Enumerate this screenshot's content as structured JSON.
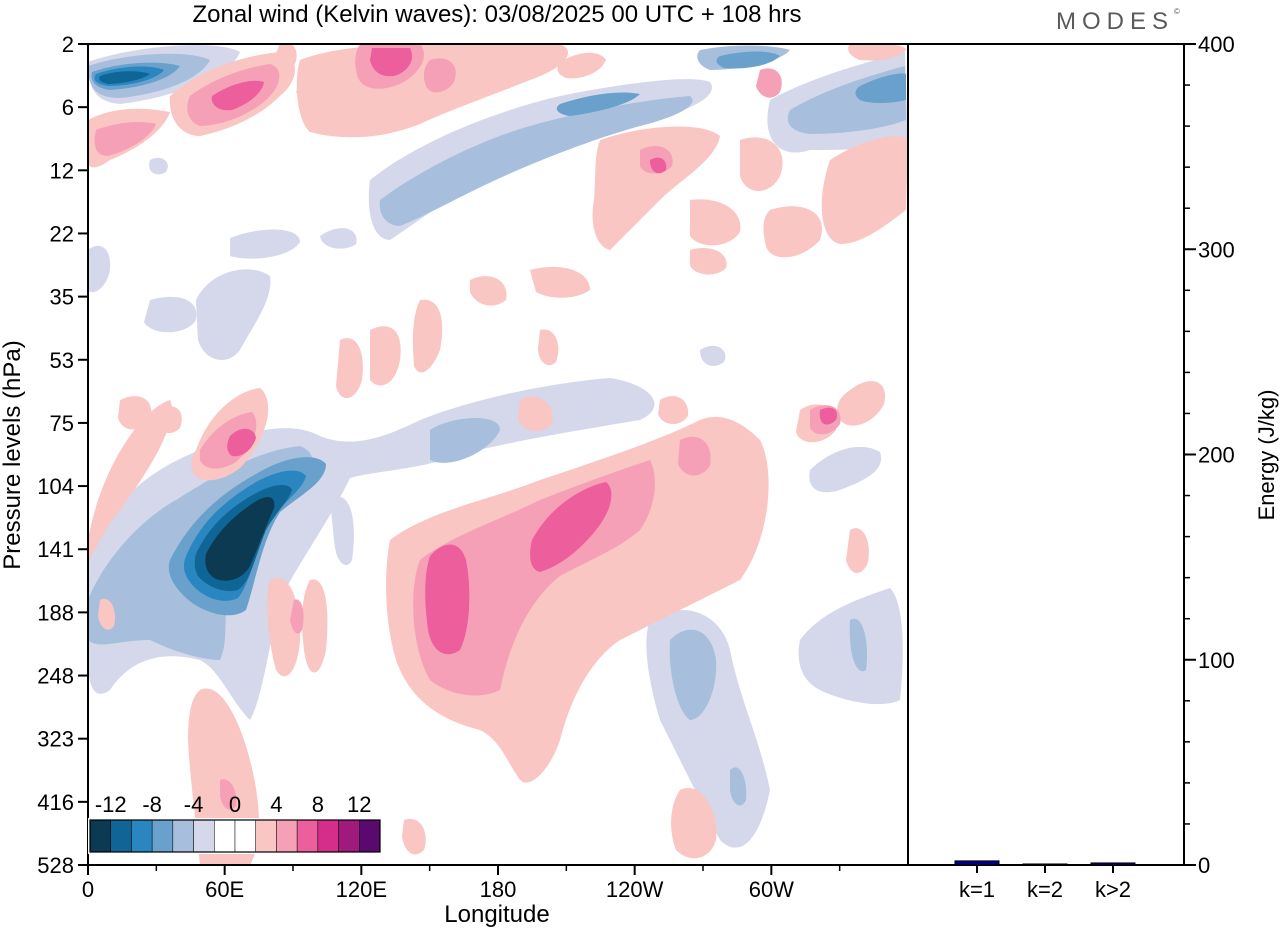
{
  "brand": {
    "name": "MODES",
    "mark": "©"
  },
  "chart_data": [
    {
      "type": "heatmap",
      "title": "Zonal wind (Kelvin waves):  03/08/2025  00 UTC  + 108 hrs",
      "xlabel": "Longitude",
      "ylabel": "Pressure levels (hPa)",
      "x_ticks": [
        "0",
        "60E",
        "120E",
        "180",
        "120W",
        "60W"
      ],
      "x_tick_values": [
        0,
        60,
        120,
        180,
        240,
        300
      ],
      "xlim": [
        0,
        360
      ],
      "y_ticks": [
        "2",
        "6",
        "12",
        "22",
        "35",
        "53",
        "75",
        "104",
        "141",
        "188",
        "248",
        "323",
        "416",
        "528"
      ],
      "colorbar": {
        "labels": [
          "-12",
          "-8",
          "-4",
          "0",
          "4",
          "8",
          "12"
        ],
        "levels": [
          -14,
          -12,
          -10,
          -8,
          -6,
          -4,
          -2,
          0,
          2,
          4,
          6,
          8,
          10,
          12,
          14
        ],
        "colors": [
          "#0c3a52",
          "#0f6596",
          "#2a86c0",
          "#6aa0cc",
          "#a7bfdd",
          "#d4d8ea",
          "#ffffff",
          "#ffffff",
          "#f9c6c4",
          "#f6a0b8",
          "#ec5f9c",
          "#d42d8a",
          "#a01a7d",
          "#5a0a6f"
        ]
      },
      "features": [
        {
          "label": "easterly maximum near 60E-80E",
          "lon": 70,
          "level_hpa": 141,
          "value": -14
        },
        {
          "label": "westerly anomaly 150E-160E",
          "lon": 160,
          "level_hpa": 188,
          "value": 7
        },
        {
          "label": "westerly anomaly near 160W",
          "lon": 200,
          "level_hpa": 141,
          "value": 7
        },
        {
          "label": "westerly pocket near 60E",
          "lon": 70,
          "level_hpa": 75,
          "value": 7
        },
        {
          "label": "easterly band at upper levels",
          "lon": 20,
          "level_hpa": 4,
          "value": -10
        }
      ]
    },
    {
      "type": "bar",
      "ylabel": "Energy (J/kg)",
      "categories": [
        "k=1",
        "k=2",
        "k>2"
      ],
      "values": [
        2,
        0.5,
        1
      ],
      "ylim": [
        0,
        400
      ],
      "y_ticks": [
        "0",
        "100",
        "200",
        "300",
        "400"
      ],
      "bar_colors": [
        "#00008b",
        "#00008b",
        "#00008b"
      ]
    }
  ]
}
